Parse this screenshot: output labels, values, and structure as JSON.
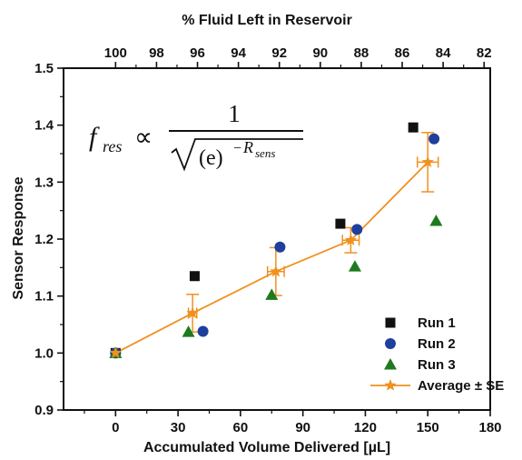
{
  "chart_data": {
    "type": "scatter",
    "xlabel": "Accumulated Volume Delivered [µL]",
    "ylabel": "Sensor Response",
    "top_xlabel": "% Fluid Left in Reservoir",
    "xlim": [
      -25,
      180
    ],
    "ylim": [
      0.9,
      1.5
    ],
    "x_ticks": [
      0,
      30,
      60,
      90,
      120,
      150,
      180
    ],
    "y_ticks": [
      0.9,
      1.0,
      1.1,
      1.2,
      1.3,
      1.4,
      1.5
    ],
    "top_ticks": [
      100,
      98,
      96,
      94,
      92,
      90,
      88,
      86,
      84,
      82
    ],
    "top_tick_labels": [
      "100",
      "98",
      "96",
      "94",
      "92",
      "90",
      "88",
      "86",
      "84",
      "82"
    ],
    "top_axis_mapping": {
      "percent_at_x0": 100,
      "percent_at_x180": 81.7
    },
    "grid": false,
    "legend_position": "bottom-right",
    "series": [
      {
        "name": "Run 1",
        "marker": "square",
        "color": "#111111",
        "x": [
          0,
          38,
          108,
          143
        ],
        "y": [
          1.0,
          1.135,
          1.227,
          1.396
        ]
      },
      {
        "name": "Run 2",
        "marker": "circle",
        "color": "#1f3f9c",
        "x": [
          0,
          42,
          79,
          116,
          153
        ],
        "y": [
          1.0,
          1.038,
          1.186,
          1.217,
          1.376
        ]
      },
      {
        "name": "Run 3",
        "marker": "triangle",
        "color": "#1e7a1e",
        "x": [
          0,
          35,
          75,
          115,
          154
        ],
        "y": [
          1.0,
          1.037,
          1.102,
          1.152,
          1.232
        ]
      },
      {
        "name": "Average ± SE",
        "marker": "star",
        "color": "#f0901e",
        "line": true,
        "x": [
          0,
          37,
          77,
          113,
          150
        ],
        "y": [
          1.0,
          1.07,
          1.143,
          1.198,
          1.335
        ],
        "xerr": [
          0,
          2,
          4,
          4,
          5
        ],
        "yerr": [
          0,
          0.033,
          0.042,
          0.022,
          0.052
        ]
      }
    ],
    "annotation": {
      "lhs": "f",
      "lhs_sub": "res",
      "relation": "∝",
      "numerator": "1",
      "base": "(e)",
      "exp_sign": "−",
      "exp_var": "R",
      "exp_sub": "sens"
    }
  }
}
